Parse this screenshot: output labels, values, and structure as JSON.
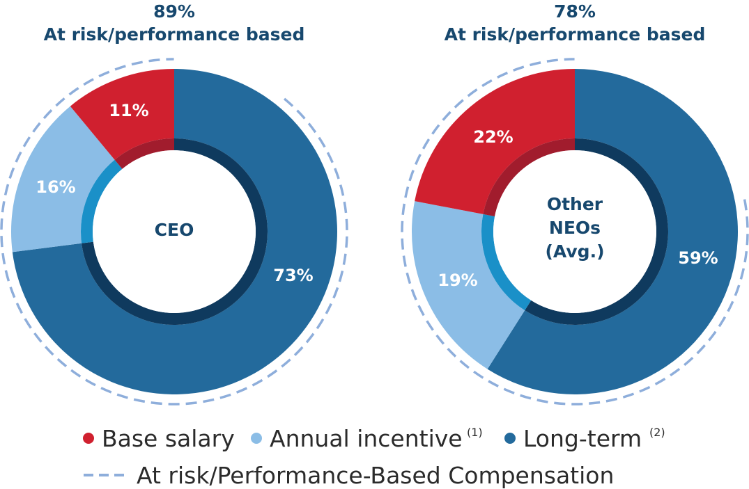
{
  "colors": {
    "base": "#d0202f",
    "annual": "#8bbde6",
    "longterm": "#236a9c",
    "inner_base": "#a11c2d",
    "inner_annual": "#1a90c8",
    "inner_longterm": "#0f3a5e",
    "dash": "#8eaedb",
    "title": "#17486e"
  },
  "chart_data": [
    {
      "type": "pie",
      "title_pct": "89%",
      "title_label": "At risk/performance based",
      "center_lines": [
        "CEO"
      ],
      "slices": [
        {
          "name": "Long-term",
          "value": 73,
          "label": "73%",
          "key": "longterm"
        },
        {
          "name": "Annual incentive",
          "value": 16,
          "label": "16%",
          "key": "annual"
        },
        {
          "name": "Base salary",
          "value": 11,
          "label": "11%",
          "key": "base"
        }
      ]
    },
    {
      "type": "pie",
      "title_pct": "78%",
      "title_label": "At risk/performance based",
      "center_lines": [
        "Other",
        "NEOs",
        "(Avg.)"
      ],
      "slices": [
        {
          "name": "Long-term",
          "value": 59,
          "label": "59%",
          "key": "longterm"
        },
        {
          "name": "Annual incentive",
          "value": 19,
          "label": "19%",
          "key": "annual"
        },
        {
          "name": "Base salary",
          "value": 22,
          "label": "22%",
          "key": "base"
        }
      ]
    }
  ],
  "legend": {
    "items": [
      {
        "label": "Base salary",
        "sup": "",
        "key": "base"
      },
      {
        "label": "Annual incentive",
        "sup": "(1)",
        "key": "annual"
      },
      {
        "label": "Long-term",
        "sup": "(2)",
        "key": "longterm"
      }
    ],
    "dashed_label": "At risk/Performance-Based Compensation"
  }
}
